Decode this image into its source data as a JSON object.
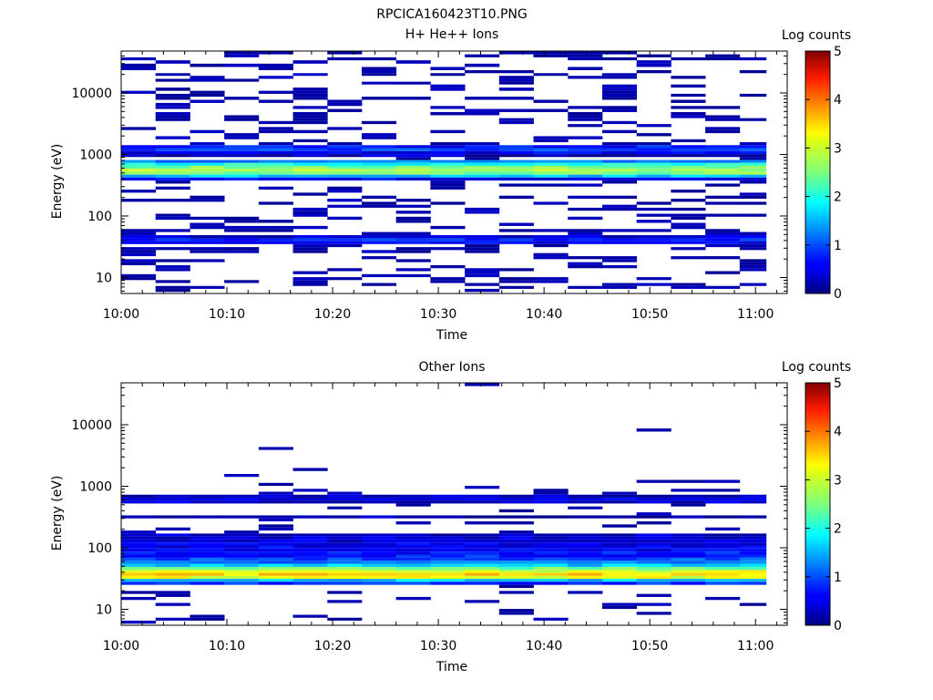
{
  "figure_title": "RPCICA160423T10.PNG",
  "chart_data": [
    {
      "type": "heatmap",
      "title": "H+ He++ Ions",
      "xlabel": "Time",
      "ylabel": "Energy (eV)",
      "xlim": [
        "10:00",
        "11:03"
      ],
      "ylim": [
        5.5,
        48000
      ],
      "yscale": "log",
      "x_ticks": [
        "10:00",
        "10:10",
        "10:20",
        "10:30",
        "10:40",
        "10:50",
        "11:00"
      ],
      "y_ticks": [
        "10",
        "100",
        "1000",
        "10000"
      ],
      "colorbar": {
        "label": "Log counts",
        "ticks": [
          "0",
          "1",
          "2",
          "3",
          "4",
          "5"
        ],
        "range": [
          0,
          5
        ],
        "colormap": "jet"
      },
      "time_bins_start": [
        "10:00",
        "10:03:15",
        "10:06:30",
        "10:09:45",
        "10:13",
        "10:16:15",
        "10:19:30",
        "10:22:45",
        "10:26",
        "10:29:15",
        "10:32:30",
        "10:35:45",
        "10:39",
        "10:42:15",
        "10:45:30",
        "10:48:45",
        "10:52",
        "10:55:15",
        "10:58:30"
      ],
      "time_bin_end": "11:01",
      "energy_bins_eV": [
        45000,
        40000,
        36000,
        32000,
        28000,
        25000,
        22000,
        20000,
        18000,
        16000,
        14500,
        13000,
        11500,
        10200,
        9200,
        8200,
        7300,
        6500,
        5800,
        5200,
        4600,
        4100,
        3700,
        3300,
        2950,
        2650,
        2350,
        2100,
        1870,
        1670,
        1500,
        1340,
        1200,
        1070,
        960,
        860,
        770,
        690,
        620,
        555,
        495,
        445,
        400,
        355,
        318,
        284,
        254,
        226,
        202,
        180,
        161,
        144,
        129,
        115,
        103,
        92,
        82,
        73,
        65,
        58,
        52,
        46,
        41,
        37,
        33,
        29.5,
        26.5,
        23.5,
        21,
        18.8,
        16.8,
        15,
        13.4,
        12,
        10.7,
        9.6,
        8.6,
        7.7,
        6.9,
        6.2
      ],
      "background_log_counts": [
        [
          1340,
          0.7
        ],
        [
          1200,
          0.95
        ],
        [
          1070,
          0.55
        ],
        [
          960,
          0.3
        ],
        [
          770,
          1.3
        ],
        [
          690,
          2.0
        ],
        [
          620,
          2.5
        ],
        [
          555,
          2.7
        ],
        [
          495,
          2.5
        ],
        [
          445,
          1.6
        ],
        [
          400,
          0.6
        ],
        [
          46,
          0.4
        ],
        [
          41,
          0.8
        ],
        [
          37,
          0.55
        ]
      ],
      "sparse_cell_log_counts": 0.1
    },
    {
      "type": "heatmap",
      "title": "Other Ions",
      "xlabel": "Time",
      "ylabel": "Energy (eV)",
      "xlim": [
        "10:00",
        "11:03"
      ],
      "ylim": [
        5.5,
        48000
      ],
      "yscale": "log",
      "x_ticks": [
        "10:00",
        "10:10",
        "10:20",
        "10:30",
        "10:40",
        "10:50",
        "11:00"
      ],
      "y_ticks": [
        "10",
        "100",
        "1000",
        "10000"
      ],
      "colorbar": {
        "label": "Log counts",
        "ticks": [
          "0",
          "1",
          "2",
          "3",
          "4",
          "5"
        ],
        "range": [
          0,
          5
        ],
        "colormap": "jet"
      },
      "time_bins_start": [
        "10:00",
        "10:03:15",
        "10:06:30",
        "10:09:45",
        "10:13",
        "10:16:15",
        "10:19:30",
        "10:22:45",
        "10:26",
        "10:29:15",
        "10:32:30",
        "10:35:45",
        "10:39",
        "10:42:15",
        "10:45:30",
        "10:48:45",
        "10:52",
        "10:55:15",
        "10:58:30"
      ],
      "time_bin_end": "11:01",
      "energy_bins_eV": [
        45000,
        40000,
        36000,
        32000,
        28000,
        25000,
        22000,
        20000,
        18000,
        16000,
        14500,
        13000,
        11500,
        10200,
        9200,
        8200,
        7300,
        6500,
        5800,
        5200,
        4600,
        4100,
        3700,
        3300,
        2950,
        2650,
        2350,
        2100,
        1870,
        1670,
        1500,
        1340,
        1200,
        1070,
        960,
        860,
        770,
        690,
        620,
        555,
        495,
        445,
        400,
        355,
        318,
        284,
        254,
        226,
        202,
        180,
        161,
        144,
        129,
        115,
        103,
        92,
        82,
        73,
        65,
        58,
        52,
        46,
        41,
        37,
        33,
        29.5,
        26.5,
        23.5,
        21,
        18.8,
        16.8,
        15,
        13.4,
        12,
        10.7,
        9.6,
        8.6,
        7.7,
        6.9,
        6.2
      ],
      "background_log_counts": [
        [
          690,
          0.3
        ],
        [
          620,
          0.5
        ],
        [
          555,
          0.4
        ],
        [
          318,
          0.2
        ],
        [
          161,
          0.35
        ],
        [
          144,
          0.4
        ],
        [
          129,
          0.45
        ],
        [
          115,
          0.5
        ],
        [
          103,
          0.55
        ],
        [
          92,
          0.6
        ],
        [
          82,
          0.7
        ],
        [
          73,
          0.75
        ],
        [
          65,
          1.0
        ],
        [
          58,
          1.2
        ],
        [
          52,
          1.6
        ],
        [
          46,
          2.4
        ],
        [
          41,
          3.0
        ],
        [
          37,
          3.3
        ],
        [
          33,
          3.0
        ],
        [
          29.5,
          1.6
        ],
        [
          26.5,
          0.8
        ]
      ],
      "sparse_cell_log_counts": 0.1
    }
  ]
}
